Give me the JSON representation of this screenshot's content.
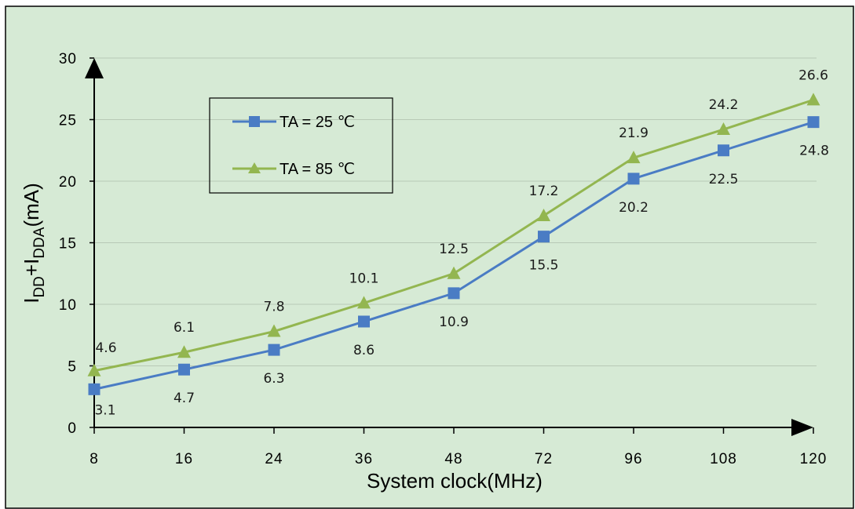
{
  "chart_data": {
    "type": "line",
    "categories": [
      "8",
      "16",
      "24",
      "36",
      "48",
      "72",
      "96",
      "108",
      "120"
    ],
    "series": [
      {
        "name": "TA = 25 ℃",
        "color": "#4a7cc4",
        "marker": "square",
        "values": [
          3.1,
          4.7,
          6.3,
          8.6,
          10.9,
          15.5,
          20.2,
          22.5,
          24.8
        ]
      },
      {
        "name": "TA = 85 ℃",
        "color": "#93b650",
        "marker": "triangle",
        "values": [
          4.6,
          6.1,
          7.8,
          10.1,
          12.5,
          17.2,
          21.9,
          24.2,
          26.6
        ]
      }
    ],
    "ylim": [
      0,
      30
    ],
    "yticks": [
      "0",
      "5",
      "10",
      "15",
      "20",
      "25",
      "30"
    ],
    "xlabel": "System clock(MHz)",
    "ylabel": {
      "base1": "I",
      "sub1": "DD",
      "mid": "+I",
      "sub2": "DDA",
      "unit": "(mA)"
    },
    "grid": "horizontal",
    "legend_position": "top-left",
    "background": "#d6ead5"
  }
}
